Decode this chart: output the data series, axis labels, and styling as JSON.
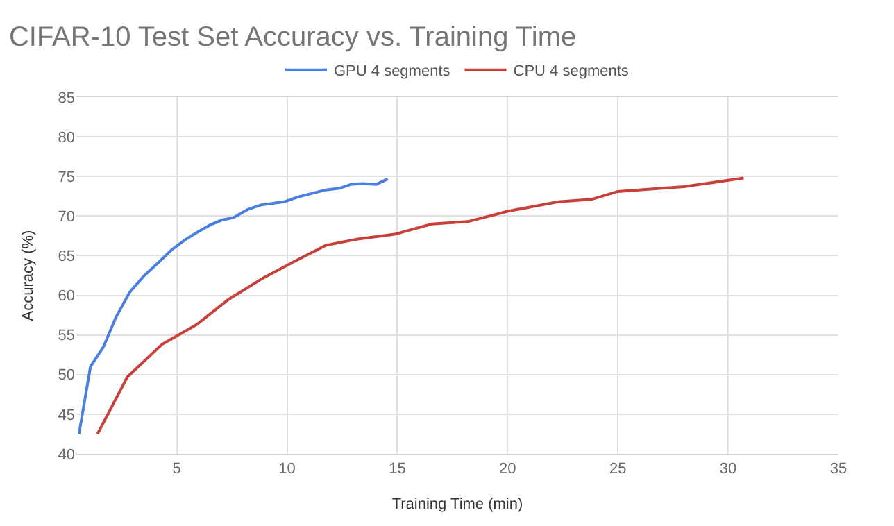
{
  "chart_data": {
    "type": "line",
    "title": "CIFAR-10 Test Set Accuracy vs. Training Time",
    "xlabel": "Training Time (min)",
    "ylabel": "Accuracy (%)",
    "xlim": [
      0.45,
      35
    ],
    "xticks": [
      5,
      10,
      15,
      20,
      25,
      30,
      35
    ],
    "ylim": [
      40,
      85
    ],
    "yticks": [
      40,
      45,
      50,
      55,
      60,
      65,
      70,
      75,
      80,
      85
    ],
    "grid": true,
    "legend": "top",
    "marker": "none",
    "line_style": "solid",
    "series": [
      {
        "name": "GPU 4 segments",
        "color": "#4a7fe0",
        "x": [
          0.57,
          1.09,
          1.68,
          2.24,
          2.87,
          3.5,
          4.23,
          4.75,
          5.38,
          5.9,
          6.53,
          7.05,
          7.57,
          8.2,
          8.82,
          9.87,
          10.5,
          11.75,
          12.38,
          12.9,
          13.42,
          14.05,
          14.57
        ],
        "values": [
          42.5,
          51.0,
          53.5,
          57.2,
          60.4,
          62.4,
          64.3,
          65.7,
          67.0,
          67.9,
          68.9,
          69.5,
          69.8,
          70.8,
          71.4,
          71.8,
          72.4,
          73.3,
          73.5,
          74.0,
          74.1,
          74.0,
          74.7
        ]
      },
      {
        "name": "CPU 4 segments",
        "color": "#c9403a",
        "x": [
          1.41,
          2.76,
          4.33,
          5.9,
          7.36,
          8.93,
          10.29,
          11.75,
          13.21,
          14.88,
          16.56,
          18.2,
          20.0,
          22.3,
          23.8,
          25.0,
          27.0,
          28.0,
          30.7
        ],
        "values": [
          42.5,
          49.7,
          53.8,
          56.3,
          59.5,
          62.2,
          64.2,
          66.3,
          67.1,
          67.7,
          69.0,
          69.3,
          70.6,
          71.8,
          72.1,
          73.1,
          73.5,
          73.7,
          74.8
        ]
      }
    ]
  }
}
